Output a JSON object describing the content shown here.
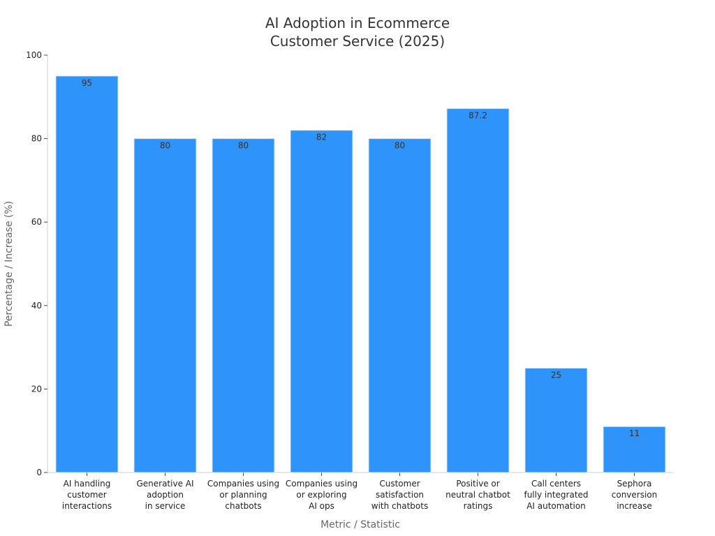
{
  "chart_data": {
    "type": "bar",
    "title": [
      "AI Adoption in Ecommerce",
      "Customer Service (2025)"
    ],
    "xlabel": "Metric / Statistic",
    "ylabel": "Percentage / Increase (%)",
    "ylim": [
      0,
      100
    ],
    "yticks": [
      "0",
      "20",
      "40",
      "60",
      "80",
      "100"
    ],
    "grid": false,
    "categories": [
      [
        "AI handling",
        "customer",
        "interactions"
      ],
      [
        "Generative AI",
        "adoption",
        "in service"
      ],
      [
        "Companies using",
        "or planning",
        "chatbots"
      ],
      [
        "Companies using",
        "or exploring",
        "AI ops"
      ],
      [
        "Customer",
        "satisfaction",
        "with chatbots"
      ],
      [
        "Positive or",
        "neutral chatbot",
        "ratings"
      ],
      [
        "Call centers",
        "fully integrated",
        "AI automation"
      ],
      [
        "Sephora",
        "conversion",
        "increase"
      ]
    ],
    "values": [
      95,
      80,
      80,
      82,
      80,
      87.2,
      25,
      11
    ],
    "data_labels": [
      "95",
      "80",
      "80",
      "82",
      "80",
      "87.2",
      "25",
      "11"
    ],
    "bar_color": "#2e93fa",
    "bar_edge_color": "#d6e6f5",
    "axis_color": "#cccccc"
  }
}
